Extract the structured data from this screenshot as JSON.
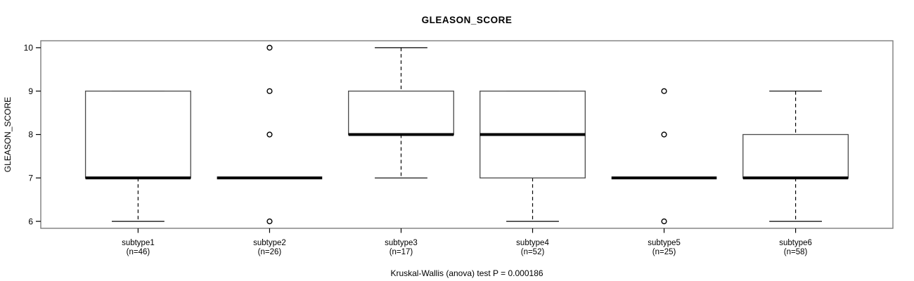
{
  "title": "GLEASON_SCORE",
  "footer": "Kruskal-Wallis (anova) test P = 0.000186",
  "chart_data": {
    "type": "boxplot",
    "title": "GLEASON_SCORE",
    "ylabel": "GLEASON_SCORE",
    "xlabel": "",
    "ylim": [
      5.84,
      10.16
    ],
    "yticks": [
      6,
      7,
      8,
      9,
      10
    ],
    "grid": false,
    "annotation": "Kruskal-Wallis (anova) test P = 0.000186",
    "groups": [
      {
        "label": "subtype1",
        "sublabel": "(n=46)",
        "n": 46,
        "whisker_low": 6,
        "q1": 7,
        "median": 7,
        "q3": 9,
        "whisker_high": 9,
        "outliers": []
      },
      {
        "label": "subtype2",
        "sublabel": "(n=26)",
        "n": 26,
        "whisker_low": 7,
        "q1": 7,
        "median": 7,
        "q3": 7,
        "whisker_high": 7,
        "outliers": [
          6,
          8,
          9,
          10
        ]
      },
      {
        "label": "subtype3",
        "sublabel": "(n=17)",
        "n": 17,
        "whisker_low": 7,
        "q1": 8,
        "median": 8,
        "q3": 9,
        "whisker_high": 10,
        "outliers": []
      },
      {
        "label": "subtype4",
        "sublabel": "(n=52)",
        "n": 52,
        "whisker_low": 6,
        "q1": 7,
        "median": 8,
        "q3": 9,
        "whisker_high": 9,
        "outliers": []
      },
      {
        "label": "subtype5",
        "sublabel": "(n=25)",
        "n": 25,
        "whisker_low": 7,
        "q1": 7,
        "median": 7,
        "q3": 7,
        "whisker_high": 7,
        "outliers": [
          6,
          8,
          9
        ]
      },
      {
        "label": "subtype6",
        "sublabel": "(n=58)",
        "n": 58,
        "whisker_low": 6,
        "q1": 7,
        "median": 7,
        "q3": 8,
        "whisker_high": 9,
        "outliers": []
      }
    ]
  },
  "colors": {
    "frame": "#7d7d7d",
    "box_border": "#4a4a4a",
    "data_ink": "#000000",
    "background": "#ffffff"
  }
}
